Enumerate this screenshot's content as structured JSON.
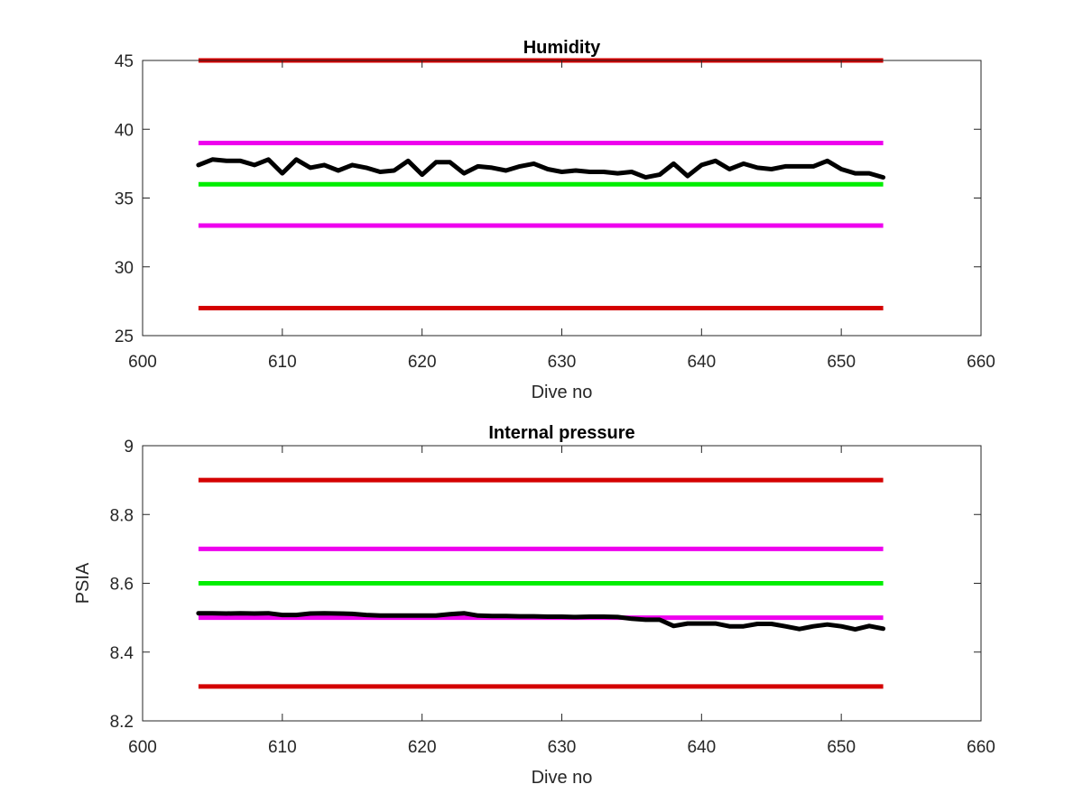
{
  "chart_data": [
    {
      "type": "line",
      "title": "Humidity",
      "xlabel": "Dive no",
      "ylabel": "",
      "xlim": [
        600,
        660
      ],
      "ylim": [
        25,
        45
      ],
      "xticks": [
        600,
        610,
        620,
        630,
        640,
        650,
        660
      ],
      "yticks": [
        25,
        30,
        35,
        40,
        45
      ],
      "xtick_labels": [
        "600",
        "610",
        "620",
        "630",
        "640",
        "650",
        "660"
      ],
      "ytick_labels": [
        "25",
        "30",
        "35",
        "40",
        "45"
      ],
      "grid": false,
      "reference_lines": [
        {
          "value": 45,
          "x": [
            604,
            653
          ],
          "color": "#d40000"
        },
        {
          "value": 39,
          "x": [
            604,
            653
          ],
          "color": "#ee00ee"
        },
        {
          "value": 36,
          "x": [
            604,
            653
          ],
          "color": "#00ee00"
        },
        {
          "value": 33,
          "x": [
            604,
            653
          ],
          "color": "#ee00ee"
        },
        {
          "value": 27,
          "x": [
            604,
            653
          ],
          "color": "#d40000"
        }
      ],
      "series": [
        {
          "color": "#000000",
          "x": [
            604,
            605,
            606,
            607,
            608,
            609,
            610,
            611,
            612,
            613,
            614,
            615,
            616,
            617,
            618,
            619,
            620,
            621,
            622,
            623,
            624,
            625,
            626,
            627,
            628,
            629,
            630,
            631,
            632,
            633,
            634,
            635,
            636,
            637,
            638,
            639,
            640,
            641,
            642,
            643,
            644,
            645,
            646,
            647,
            648,
            649,
            650,
            651,
            652,
            653
          ],
          "y": [
            37.4,
            37.8,
            37.7,
            37.7,
            37.4,
            37.8,
            36.8,
            37.8,
            37.2,
            37.4,
            37.0,
            37.4,
            37.2,
            36.9,
            37.0,
            37.7,
            36.7,
            37.6,
            37.6,
            36.8,
            37.3,
            37.2,
            37.0,
            37.3,
            37.5,
            37.1,
            36.9,
            37.0,
            36.9,
            36.9,
            36.8,
            36.9,
            36.5,
            36.7,
            37.5,
            36.6,
            37.4,
            37.7,
            37.1,
            37.5,
            37.2,
            37.1,
            37.3,
            37.3,
            37.3,
            37.7,
            37.1,
            36.8,
            36.8,
            36.5
          ]
        }
      ]
    },
    {
      "type": "line",
      "title": "Internal pressure",
      "xlabel": "Dive no",
      "ylabel": "PSIA",
      "xlim": [
        600,
        660
      ],
      "ylim": [
        8.2,
        9.0
      ],
      "xticks": [
        600,
        610,
        620,
        630,
        640,
        650,
        660
      ],
      "yticks": [
        8.2,
        8.4,
        8.6,
        8.8,
        9.0
      ],
      "xtick_labels": [
        "600",
        "610",
        "620",
        "630",
        "640",
        "650",
        "660"
      ],
      "ytick_labels": [
        "8.2",
        "8.4",
        "8.6",
        "8.8",
        "9"
      ],
      "grid": false,
      "reference_lines": [
        {
          "value": 8.9,
          "x": [
            604,
            653
          ],
          "color": "#d40000"
        },
        {
          "value": 8.7,
          "x": [
            604,
            653
          ],
          "color": "#ee00ee"
        },
        {
          "value": 8.6,
          "x": [
            604,
            653
          ],
          "color": "#00ee00"
        },
        {
          "value": 8.5,
          "x": [
            604,
            653
          ],
          "color": "#ee00ee"
        },
        {
          "value": 8.3,
          "x": [
            604,
            653
          ],
          "color": "#d40000"
        }
      ],
      "series": [
        {
          "color": "#000000",
          "x": [
            604,
            605,
            606,
            607,
            608,
            609,
            610,
            611,
            612,
            613,
            614,
            615,
            616,
            617,
            618,
            619,
            620,
            621,
            622,
            623,
            624,
            625,
            626,
            627,
            628,
            629,
            630,
            631,
            632,
            633,
            634,
            635,
            636,
            637,
            638,
            639,
            640,
            641,
            642,
            643,
            644,
            645,
            646,
            647,
            648,
            649,
            650,
            651,
            652,
            653
          ],
          "y": [
            8.513,
            8.513,
            8.512,
            8.513,
            8.512,
            8.513,
            8.508,
            8.508,
            8.512,
            8.513,
            8.512,
            8.511,
            8.508,
            8.506,
            8.506,
            8.506,
            8.506,
            8.506,
            8.51,
            8.513,
            8.506,
            8.505,
            8.505,
            8.504,
            8.504,
            8.503,
            8.503,
            8.502,
            8.503,
            8.503,
            8.502,
            8.497,
            8.494,
            8.494,
            8.476,
            8.483,
            8.483,
            8.483,
            8.475,
            8.475,
            8.482,
            8.482,
            8.475,
            8.467,
            8.475,
            8.48,
            8.475,
            8.466,
            8.476,
            8.468
          ]
        }
      ]
    }
  ]
}
